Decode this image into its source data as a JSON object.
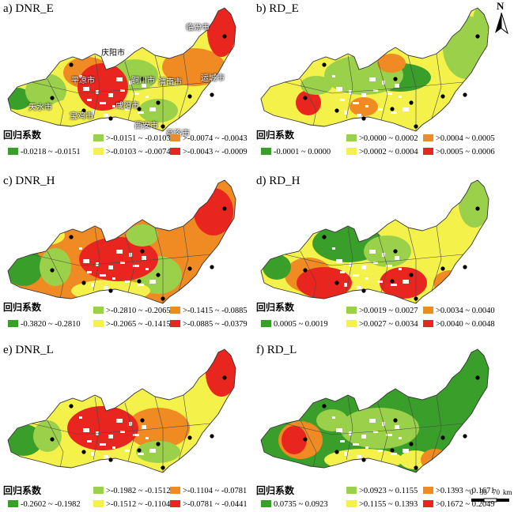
{
  "north_label": "N",
  "scale": {
    "ticks": [
      "0",
      "35",
      "70"
    ],
    "unit": "km"
  },
  "panels": [
    {
      "id": "a",
      "title": "a) DNR_E",
      "legend_title": "回归系数",
      "legend": [
        {
          "label": "-0.0218 ~ -0.0151",
          "color": "#3a9e2a"
        },
        {
          "label": ">-0.0151 ~ -0.0103",
          "color": "#9bd14a"
        },
        {
          "label": ">-0.0103 ~ -0.0074",
          "color": "#f4f24a"
        },
        {
          "label": ">-0.0074 ~ -0.0043",
          "color": "#f08a22"
        },
        {
          "label": ">-0.0043 ~ -0.0009",
          "color": "#e8261f"
        }
      ],
      "cities": [
        {
          "name": "临汾市",
          "dark": false
        },
        {
          "name": "庆阳市",
          "dark": true
        },
        {
          "name": "平凉市",
          "dark": false
        },
        {
          "name": "铜川市",
          "dark": false
        },
        {
          "name": "渭南市",
          "dark": false
        },
        {
          "name": "运城市",
          "dark": false
        },
        {
          "name": "天水市",
          "dark": false
        },
        {
          "name": "咸阳市",
          "dark": false
        },
        {
          "name": "宝鸡市",
          "dark": false
        },
        {
          "name": "西安市",
          "dark": false
        },
        {
          "name": "商洛市",
          "dark": false
        }
      ]
    },
    {
      "id": "b",
      "title": "b) RD_E",
      "legend_title": "回归系数",
      "legend": [
        {
          "label": "-0.0001 ~ 0.0000",
          "color": "#3a9e2a"
        },
        {
          "label": ">0.0000 ~ 0.0002",
          "color": "#9bd14a"
        },
        {
          "label": ">0.0002 ~ 0.0004",
          "color": "#f4f24a"
        },
        {
          "label": ">0.0004 ~ 0.0005",
          "color": "#f08a22"
        },
        {
          "label": ">0.0005 ~ 0.0006",
          "color": "#e8261f"
        }
      ]
    },
    {
      "id": "c",
      "title": "c) DNR_H",
      "legend_title": "回归系数",
      "legend": [
        {
          "label": "-0.3820 ~ -0.2810",
          "color": "#3a9e2a"
        },
        {
          "label": ">-0.2810 ~ -0.2065",
          "color": "#9bd14a"
        },
        {
          "label": ">-0.2065 ~ -0.1415",
          "color": "#f4f24a"
        },
        {
          "label": ">-0.1415 ~ -0.0885",
          "color": "#f08a22"
        },
        {
          "label": ">-0.0885 ~ -0.0379",
          "color": "#e8261f"
        }
      ]
    },
    {
      "id": "d",
      "title": "d) RD_H",
      "legend_title": "回归系数",
      "legend": [
        {
          "label": "0.0005 ~ 0.0019",
          "color": "#3a9e2a"
        },
        {
          "label": ">0.0019 ~ 0.0027",
          "color": "#9bd14a"
        },
        {
          "label": ">0.0027 ~ 0.0034",
          "color": "#f4f24a"
        },
        {
          "label": ">0.0034 ~ 0.0040",
          "color": "#f08a22"
        },
        {
          "label": ">0.0040 ~ 0.0048",
          "color": "#e8261f"
        }
      ]
    },
    {
      "id": "e",
      "title": "e) DNR_L",
      "legend_title": "回归系数",
      "legend": [
        {
          "label": "-0.2602 ~ -0.1982",
          "color": "#3a9e2a"
        },
        {
          "label": ">-0.1982 ~ -0.1512",
          "color": "#9bd14a"
        },
        {
          "label": ">-0.1512 ~ -0.1104",
          "color": "#f4f24a"
        },
        {
          "label": ">-0.1104 ~ -0.0781",
          "color": "#f08a22"
        },
        {
          "label": ">-0.0781 ~ -0.0441",
          "color": "#e8261f"
        }
      ]
    },
    {
      "id": "f",
      "title": "f) RD_L",
      "legend_title": "回归系数",
      "legend": [
        {
          "label": "0.0735 ~ 0.0923",
          "color": "#3a9e2a"
        },
        {
          "label": ">0.0923 ~ 0.1155",
          "color": "#9bd14a"
        },
        {
          "label": ">0.1155 ~ 0.1393",
          "color": "#f4f24a"
        },
        {
          "label": ">0.1393 ~ 0.1671",
          "color": "#f08a22"
        },
        {
          "label": ">0.1672 ~ 0.2049",
          "color": "#e8261f"
        }
      ]
    }
  ]
}
